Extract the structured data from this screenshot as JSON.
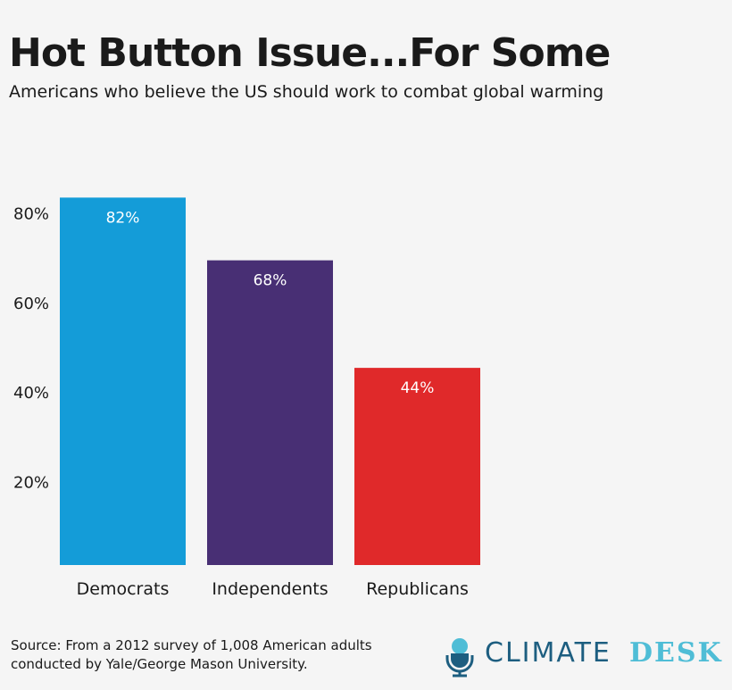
{
  "title": "Hot Button Issue...For Some",
  "subtitle": "Americans who believe the US should work to combat global warming",
  "source": [
    "Source: From a 2012 survey of 1,008 American adults",
    "conducted by Yale/George Mason University."
  ],
  "logo": {
    "word1": "CLIMATE",
    "word2": "DESK",
    "icon": "microphone-globe-icon"
  },
  "chart_data": {
    "type": "bar",
    "categories": [
      "Democrats",
      "Independents",
      "Republicans"
    ],
    "values": [
      82,
      68,
      44
    ],
    "data_labels": [
      "82%",
      "68%",
      "44%"
    ],
    "colors": [
      "#149cd8",
      "#482f74",
      "#e0292a"
    ],
    "yticks": [
      20,
      40,
      60,
      80
    ],
    "ytick_labels": [
      "20%",
      "40%",
      "60%",
      "80%"
    ],
    "ylim": [
      0,
      82
    ],
    "grid": false
  }
}
